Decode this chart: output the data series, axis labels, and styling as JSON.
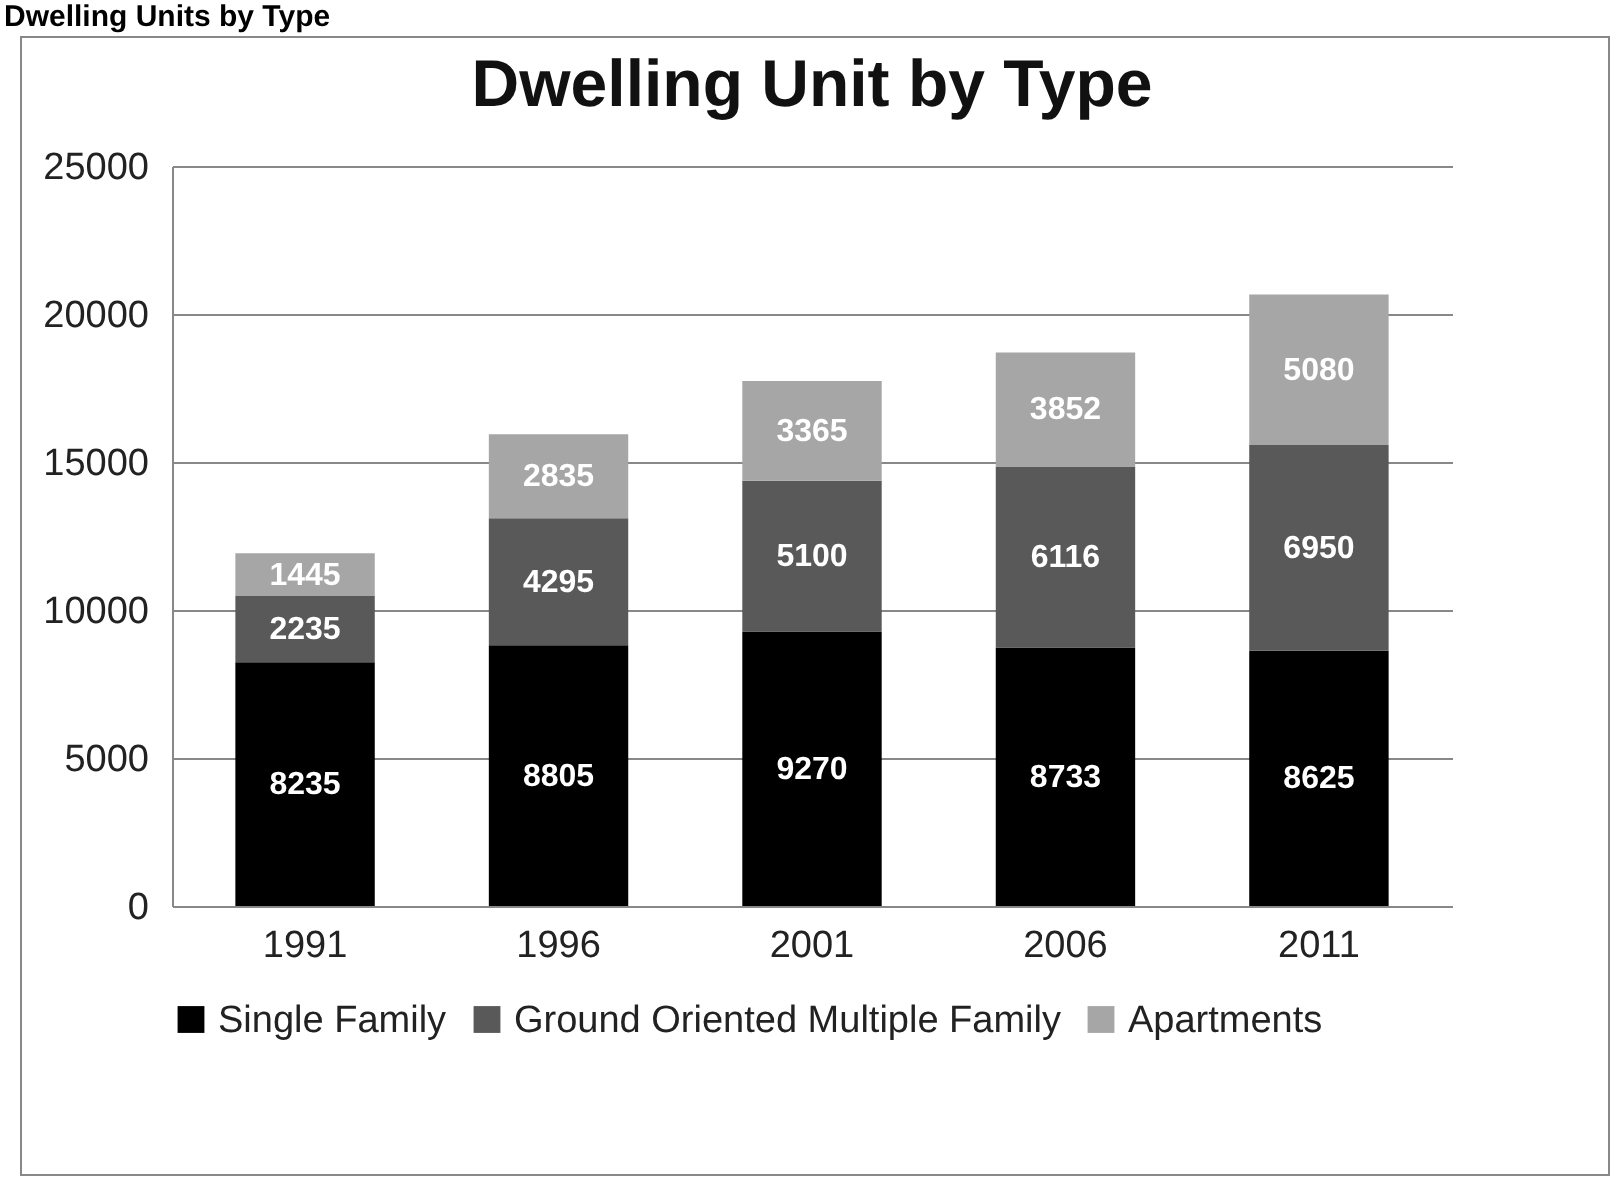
{
  "chart_data": {
    "type": "bar",
    "title": "Dwelling Unit by Type",
    "annotations": [
      "Dwelling Units by Type"
    ],
    "categories": [
      "1991",
      "1996",
      "2001",
      "2006",
      "2011"
    ],
    "stacked": true,
    "series": [
      {
        "name": "Single Family",
        "color": "#000000",
        "values": [
          8235,
          8805,
          9270,
          8733,
          8625
        ]
      },
      {
        "name": "Ground Oriented Multiple Family",
        "color": "#595959",
        "values": [
          2235,
          4295,
          5100,
          6116,
          6950
        ]
      },
      {
        "name": "Apartments",
        "color": "#a6a6a6",
        "values": [
          1445,
          2835,
          3365,
          3852,
          5080
        ]
      }
    ],
    "ylim": [
      0,
      25000
    ],
    "yticks": [
      0,
      5000,
      10000,
      15000,
      20000,
      25000
    ],
    "grid": "y",
    "legend": "bottom",
    "data_labels": true
  }
}
